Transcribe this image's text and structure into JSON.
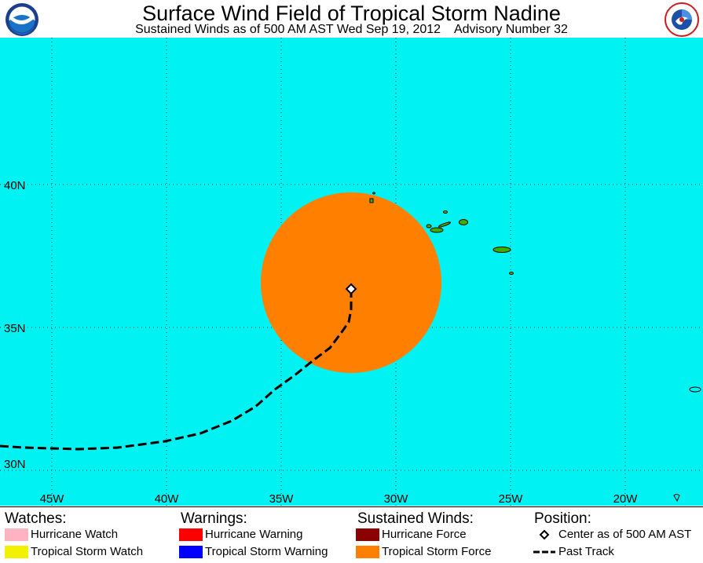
{
  "header": {
    "title": "Surface Wind Field of Tropical Storm Nadine",
    "subtitle": "Sustained Winds as of 500 AM AST Wed Sep 19, 2012    Advisory Number 32",
    "logo_left": "NOAA",
    "logo_right": "NATIONAL WEATHER SERVICE"
  },
  "map": {
    "ocean_color": "#00f2f2",
    "land_color": "#3ab000",
    "lat_labels": [
      "40N",
      "35N",
      "30N"
    ],
    "lon_labels": [
      "45W",
      "40W",
      "35W",
      "30W",
      "25W",
      "20W"
    ],
    "storm": {
      "center_lat": 36.4,
      "center_lon": -32.0,
      "tropical_storm_force_color": "#ff8000"
    }
  },
  "legend": {
    "watches": {
      "heading": "Watches:",
      "items": [
        {
          "label": "Hurricane Watch",
          "color": "#ffb3c1"
        },
        {
          "label": "Tropical Storm Watch",
          "color": "#f2f200"
        }
      ]
    },
    "warnings": {
      "heading": "Warnings:",
      "items": [
        {
          "label": "Hurricane Warning",
          "color": "#ff0000"
        },
        {
          "label": "Tropical Storm Warning",
          "color": "#0000ff"
        }
      ]
    },
    "winds": {
      "heading": "Sustained Winds:",
      "items": [
        {
          "label": "Hurricane Force",
          "color": "#8b0000"
        },
        {
          "label": "Tropical Storm Force",
          "color": "#ff8000"
        }
      ]
    },
    "position": {
      "heading": "Position:",
      "items": [
        {
          "label": "Center as of 500 AM AST",
          "icon": "diamond-icon"
        },
        {
          "label": "Past Track",
          "icon": "dashed-line-icon"
        }
      ]
    }
  }
}
